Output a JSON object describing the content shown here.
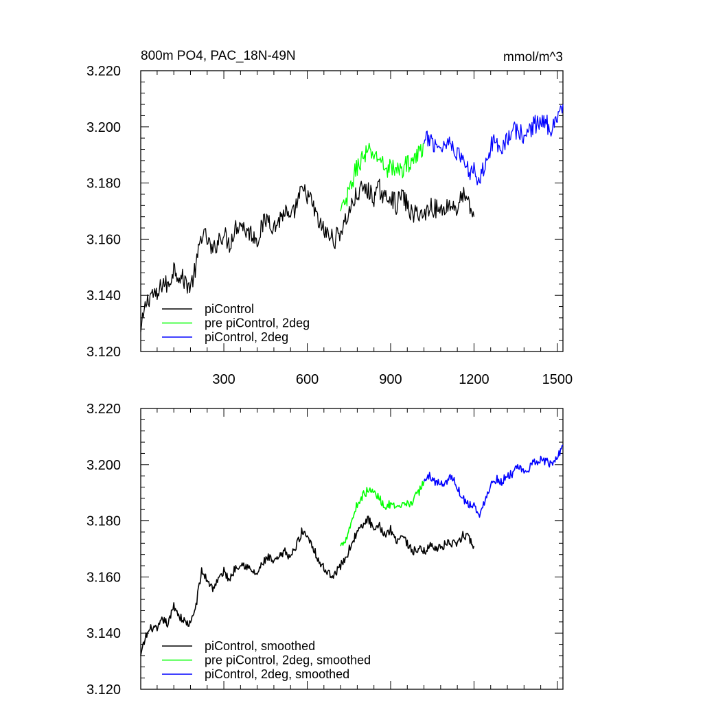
{
  "chart_data": [
    {
      "type": "line",
      "title": "800m PO4, PAC_18N-49N",
      "units": "mmol/m^3",
      "ylim": [
        3.12,
        3.22
      ],
      "xlim": [
        1,
        1520
      ],
      "yticks": [
        "3.120",
        "3.140",
        "3.160",
        "3.180",
        "3.200",
        "3.220"
      ],
      "xticks": [
        "300",
        "600",
        "900",
        "1200",
        "1500"
      ],
      "legend_position": "bottom-left",
      "series": [
        {
          "name": "piControl",
          "color": "#000000",
          "x": [
            1,
            20,
            40,
            60,
            80,
            100,
            120,
            140,
            160,
            180,
            200,
            220,
            240,
            260,
            280,
            300,
            320,
            340,
            360,
            380,
            400,
            420,
            440,
            460,
            480,
            500,
            520,
            540,
            560,
            580,
            600,
            620,
            640,
            660,
            680,
            700,
            720,
            740,
            760,
            780,
            800,
            820,
            840,
            860,
            880,
            900,
            920,
            940,
            960,
            980,
            1000,
            1020,
            1040,
            1060,
            1080,
            1100,
            1120,
            1140,
            1160,
            1180,
            1200
          ],
          "y": [
            3.127,
            3.137,
            3.141,
            3.139,
            3.145,
            3.143,
            3.15,
            3.147,
            3.145,
            3.143,
            3.15,
            3.162,
            3.16,
            3.155,
            3.16,
            3.162,
            3.158,
            3.164,
            3.166,
            3.163,
            3.162,
            3.16,
            3.165,
            3.168,
            3.164,
            3.167,
            3.17,
            3.166,
            3.172,
            3.177,
            3.176,
            3.172,
            3.166,
            3.163,
            3.161,
            3.16,
            3.163,
            3.167,
            3.172,
            3.176,
            3.178,
            3.177,
            3.175,
            3.178,
            3.174,
            3.176,
            3.172,
            3.176,
            3.172,
            3.168,
            3.17,
            3.168,
            3.172,
            3.171,
            3.17,
            3.172,
            3.172,
            3.171,
            3.176,
            3.172,
            3.168
          ],
          "noise": 0.0035
        },
        {
          "name": "pre piControl, 2deg",
          "color": "#00ff00",
          "x": [
            720,
            740,
            760,
            780,
            800,
            820,
            840,
            860,
            880,
            900,
            920,
            940,
            960,
            980,
            1000,
            1020
          ],
          "y": [
            3.17,
            3.173,
            3.18,
            3.186,
            3.189,
            3.191,
            3.19,
            3.189,
            3.185,
            3.186,
            3.184,
            3.185,
            3.187,
            3.188,
            3.19,
            3.194
          ],
          "noise": 0.0035
        },
        {
          "name": "piControl, 2deg",
          "color": "#0000ff",
          "x": [
            1020,
            1040,
            1060,
            1080,
            1100,
            1120,
            1140,
            1160,
            1180,
            1200,
            1220,
            1240,
            1260,
            1280,
            1300,
            1320,
            1340,
            1360,
            1380,
            1400,
            1420,
            1440,
            1460,
            1480,
            1500,
            1520
          ],
          "y": [
            3.194,
            3.196,
            3.194,
            3.193,
            3.194,
            3.195,
            3.19,
            3.189,
            3.184,
            3.186,
            3.18,
            3.188,
            3.193,
            3.195,
            3.193,
            3.196,
            3.198,
            3.199,
            3.196,
            3.199,
            3.201,
            3.202,
            3.201,
            3.2,
            3.204,
            3.208
          ],
          "noise": 0.0035
        }
      ]
    },
    {
      "type": "line",
      "title": "",
      "ylim": [
        3.12,
        3.22
      ],
      "xlim": [
        1,
        1520
      ],
      "yticks": [
        "3.120",
        "3.140",
        "3.160",
        "3.180",
        "3.200",
        "3.220"
      ],
      "xticks": [],
      "legend_position": "bottom-left",
      "series": [
        {
          "name": "piControl, smoothed",
          "color": "#000000",
          "x": [
            1,
            20,
            40,
            60,
            80,
            100,
            120,
            140,
            160,
            180,
            200,
            220,
            240,
            260,
            280,
            300,
            320,
            340,
            360,
            380,
            400,
            420,
            440,
            460,
            480,
            500,
            520,
            540,
            560,
            580,
            600,
            620,
            640,
            660,
            680,
            700,
            720,
            740,
            760,
            780,
            800,
            820,
            840,
            860,
            880,
            900,
            920,
            940,
            960,
            980,
            1000,
            1020,
            1040,
            1060,
            1080,
            1100,
            1120,
            1140,
            1160,
            1180,
            1200
          ],
          "y": [
            3.132,
            3.139,
            3.142,
            3.141,
            3.145,
            3.143,
            3.15,
            3.146,
            3.144,
            3.143,
            3.15,
            3.162,
            3.159,
            3.156,
            3.159,
            3.162,
            3.159,
            3.163,
            3.165,
            3.164,
            3.162,
            3.161,
            3.165,
            3.167,
            3.165,
            3.167,
            3.169,
            3.167,
            3.171,
            3.176,
            3.175,
            3.171,
            3.166,
            3.163,
            3.161,
            3.161,
            3.164,
            3.167,
            3.172,
            3.176,
            3.178,
            3.181,
            3.176,
            3.178,
            3.175,
            3.177,
            3.173,
            3.175,
            3.172,
            3.169,
            3.17,
            3.169,
            3.171,
            3.171,
            3.17,
            3.172,
            3.172,
            3.171,
            3.175,
            3.174,
            3.171
          ],
          "noise": 0.0015
        },
        {
          "name": "pre piControl, 2deg, smoothed",
          "color": "#00ff00",
          "x": [
            720,
            740,
            760,
            780,
            800,
            820,
            840,
            860,
            880,
            900,
            920,
            940,
            960,
            980,
            1000,
            1020
          ],
          "y": [
            3.171,
            3.174,
            3.18,
            3.186,
            3.189,
            3.191,
            3.19,
            3.188,
            3.185,
            3.186,
            3.184,
            3.185,
            3.186,
            3.187,
            3.19,
            3.194
          ],
          "noise": 0.0015
        },
        {
          "name": "piControl, 2deg, smoothed",
          "color": "#0000ff",
          "x": [
            1020,
            1040,
            1060,
            1080,
            1100,
            1120,
            1140,
            1160,
            1180,
            1200,
            1220,
            1240,
            1260,
            1280,
            1300,
            1320,
            1340,
            1360,
            1380,
            1400,
            1420,
            1440,
            1460,
            1480,
            1500,
            1520
          ],
          "y": [
            3.194,
            3.196,
            3.194,
            3.193,
            3.194,
            3.196,
            3.192,
            3.188,
            3.186,
            3.186,
            3.181,
            3.188,
            3.193,
            3.195,
            3.194,
            3.196,
            3.197,
            3.199,
            3.197,
            3.199,
            3.201,
            3.202,
            3.201,
            3.2,
            3.203,
            3.207
          ],
          "noise": 0.0015
        }
      ]
    }
  ]
}
